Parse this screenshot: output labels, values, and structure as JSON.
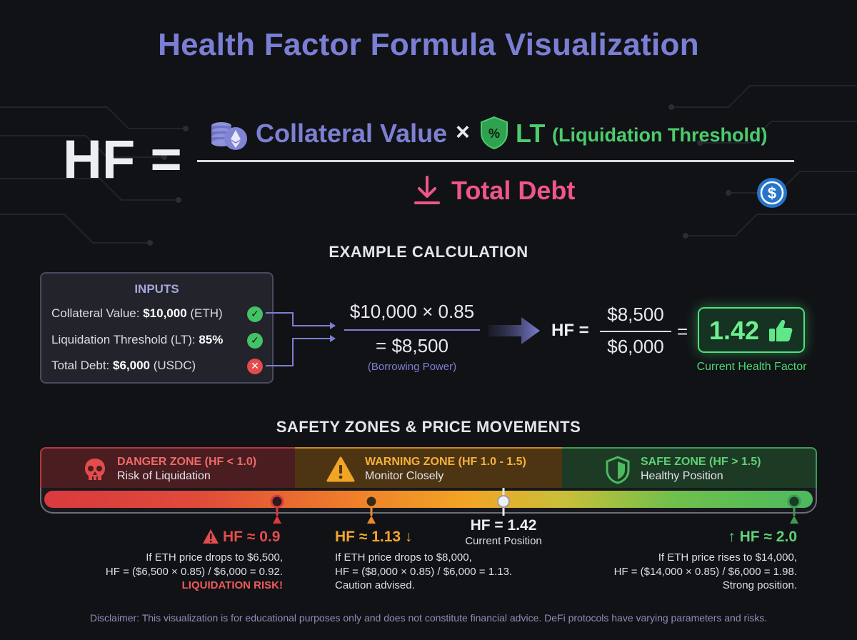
{
  "title": "Health Factor Formula Visualization",
  "formula": {
    "lhs": "HF =",
    "collateral": "Collateral Value",
    "times": "×",
    "lt": "LT",
    "lt_full": "(Liquidation Threshold)",
    "debt": "Total Debt"
  },
  "example": {
    "title": "EXAMPLE CALCULATION",
    "inputs": {
      "title": "INPUTS",
      "rows": [
        {
          "prefix": "Collateral Value: ",
          "value": "$10,000",
          "suffix": " (ETH)",
          "status": "check"
        },
        {
          "prefix": "Liquidation Threshold (LT): ",
          "value": "85%",
          "suffix": "",
          "status": "check"
        },
        {
          "prefix": "Total Debt: ",
          "value": "$6,000",
          "suffix": " (USDC)",
          "status": "cross"
        }
      ]
    },
    "calc_top": "$10,000 × 0.85",
    "calc_bottom": "= $8,500",
    "calc_note": "(Borrowing Power)",
    "hf_label": "HF =",
    "hf_num": "$8,500",
    "hf_den": "$6,000",
    "eq": "=",
    "result": "1.42",
    "result_label": "Current Health Factor"
  },
  "zones": {
    "title": "SAFETY ZONES & PRICE MOVEMENTS",
    "danger": {
      "title": "DANGER ZONE (HF < 1.0)",
      "sub": "Risk of Liquidation"
    },
    "warning": {
      "title": "WARNING ZONE (HF 1.0 - 1.5)",
      "sub": "Monitor Closely"
    },
    "safe": {
      "title": "SAFE ZONE (HF > 1.5)",
      "sub": "Healthy Position"
    }
  },
  "markers": {
    "m1": {
      "title": "HF ≈ 0.9",
      "l1": "If ETH price drops to $6,500,",
      "l2": "HF = ($6,500 × 0.85) / $6,000 = 0.92.",
      "l3": "LIQUIDATION RISK!"
    },
    "m2": {
      "title": "HF ≈ 1.13 ↓",
      "l1": "If ETH price drops to $8,000,",
      "l2": "HF = ($8,000 × 0.85) / $6,000 = 1.13.",
      "l3": "Caution advised."
    },
    "m3": {
      "title": "HF = 1.42",
      "l1": "Current Position"
    },
    "m4": {
      "title": "↑ HF ≈ 2.0",
      "l1": "If ETH price rises to $14,000,",
      "l2": "HF = ($14,000 × 0.85) / $6,000 = 1.98.",
      "l3": "Strong position."
    }
  },
  "colors": {
    "title": "#7b7fd4",
    "danger": "#e24c4c",
    "warning": "#f2a524",
    "safe": "#4cba5e",
    "debt": "#f0558a"
  },
  "disclaimer": "Disclaimer: This visualization is for educational purposes only and does not constitute financial advice. DeFi protocols have varying parameters and risks."
}
